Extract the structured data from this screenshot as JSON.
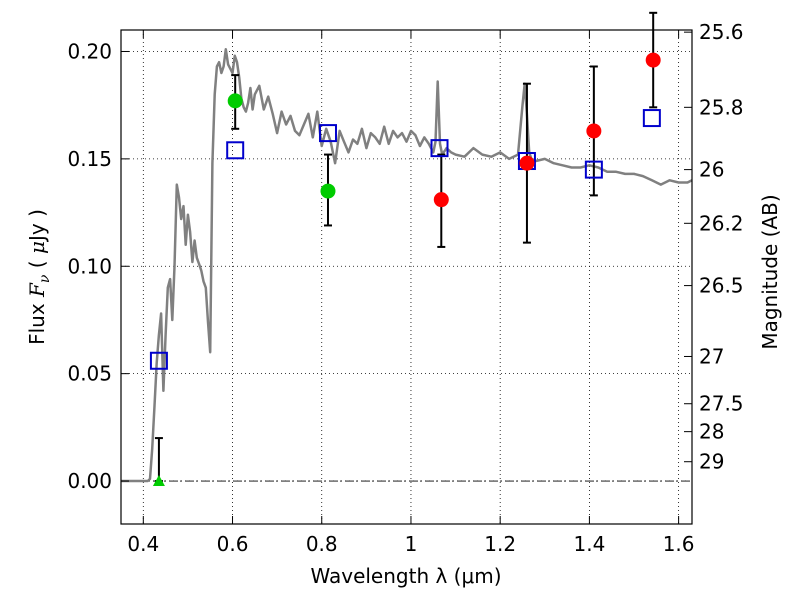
{
  "chart_data": {
    "type": "scatter",
    "xlabel": "Wavelength  λ (μm)",
    "ylabel_parts": [
      "Flux  ",
      "F",
      "ν",
      "  ( ",
      "μ",
      "Jy )"
    ],
    "ylabel": "Flux  Fν  ( μJy )",
    "y2label": "Magnitude (AB)",
    "xlim": [
      0.35,
      1.63
    ],
    "ylim": [
      -0.02,
      0.21
    ],
    "xticks": [
      0.4,
      0.6,
      0.8,
      1.0,
      1.2,
      1.4,
      1.6
    ],
    "xtick_labels": [
      "0.4",
      "0.6",
      "0.8",
      "1",
      "1.2",
      "1.4",
      "1.6"
    ],
    "yticks": [
      0.0,
      0.05,
      0.1,
      0.15,
      0.2
    ],
    "ytick_labels": [
      "0.00",
      "0.05",
      "0.10",
      "0.15",
      "0.20"
    ],
    "y2ticks": [
      {
        "flux": 0.209,
        "label": "25.6"
      },
      {
        "flux": 0.174,
        "label": "25.8"
      },
      {
        "flux": 0.145,
        "label": "26"
      },
      {
        "flux": 0.12,
        "label": "26.2"
      },
      {
        "flux": 0.091,
        "label": "26.5"
      },
      {
        "flux": 0.058,
        "label": "27"
      },
      {
        "flux": 0.036,
        "label": "27.5"
      },
      {
        "flux": 0.023,
        "label": "28"
      },
      {
        "flux": 0.009,
        "label": "29"
      }
    ],
    "grid": true,
    "model_sed": {
      "name": "model spectrum",
      "color": "#808080",
      "x": [
        0.35,
        0.4,
        0.41,
        0.415,
        0.42,
        0.425,
        0.43,
        0.435,
        0.44,
        0.445,
        0.45,
        0.455,
        0.46,
        0.465,
        0.47,
        0.475,
        0.48,
        0.485,
        0.49,
        0.495,
        0.5,
        0.505,
        0.51,
        0.515,
        0.52,
        0.525,
        0.53,
        0.535,
        0.54,
        0.545,
        0.55,
        0.555,
        0.56,
        0.565,
        0.57,
        0.575,
        0.58,
        0.585,
        0.59,
        0.595,
        0.6,
        0.605,
        0.61,
        0.615,
        0.62,
        0.625,
        0.63,
        0.635,
        0.64,
        0.645,
        0.65,
        0.66,
        0.67,
        0.68,
        0.69,
        0.7,
        0.71,
        0.72,
        0.73,
        0.74,
        0.75,
        0.76,
        0.77,
        0.78,
        0.79,
        0.8,
        0.81,
        0.82,
        0.83,
        0.84,
        0.85,
        0.86,
        0.87,
        0.88,
        0.89,
        0.9,
        0.91,
        0.92,
        0.93,
        0.94,
        0.95,
        0.96,
        0.97,
        0.98,
        0.99,
        1.0,
        1.01,
        1.02,
        1.03,
        1.04,
        1.05,
        1.055,
        1.06,
        1.065,
        1.07,
        1.08,
        1.09,
        1.1,
        1.12,
        1.14,
        1.16,
        1.18,
        1.2,
        1.22,
        1.24,
        1.25,
        1.255,
        1.26,
        1.265,
        1.27,
        1.28,
        1.3,
        1.32,
        1.34,
        1.36,
        1.38,
        1.4,
        1.42,
        1.44,
        1.46,
        1.48,
        1.5,
        1.52,
        1.54,
        1.56,
        1.58,
        1.6,
        1.62,
        1.63
      ],
      "y": [
        0.0,
        0.0,
        0.0,
        0.001,
        0.015,
        0.035,
        0.055,
        0.068,
        0.078,
        0.042,
        0.068,
        0.09,
        0.094,
        0.075,
        0.1,
        0.138,
        0.132,
        0.122,
        0.128,
        0.11,
        0.124,
        0.116,
        0.102,
        0.112,
        0.104,
        0.101,
        0.098,
        0.093,
        0.09,
        0.074,
        0.06,
        0.148,
        0.18,
        0.193,
        0.195,
        0.19,
        0.193,
        0.201,
        0.194,
        0.192,
        0.19,
        0.198,
        0.195,
        0.188,
        0.178,
        0.174,
        0.172,
        0.176,
        0.183,
        0.173,
        0.18,
        0.184,
        0.173,
        0.179,
        0.171,
        0.162,
        0.172,
        0.166,
        0.17,
        0.163,
        0.161,
        0.166,
        0.171,
        0.16,
        0.172,
        0.156,
        0.164,
        0.158,
        0.148,
        0.163,
        0.158,
        0.153,
        0.159,
        0.157,
        0.164,
        0.155,
        0.162,
        0.16,
        0.157,
        0.165,
        0.157,
        0.163,
        0.16,
        0.162,
        0.158,
        0.163,
        0.161,
        0.156,
        0.16,
        0.157,
        0.153,
        0.158,
        0.186,
        0.157,
        0.152,
        0.155,
        0.153,
        0.152,
        0.151,
        0.155,
        0.152,
        0.151,
        0.153,
        0.15,
        0.152,
        0.175,
        0.185,
        0.171,
        0.153,
        0.15,
        0.149,
        0.15,
        0.148,
        0.147,
        0.146,
        0.146,
        0.147,
        0.146,
        0.144,
        0.144,
        0.143,
        0.143,
        0.142,
        0.14,
        0.138,
        0.14,
        0.139,
        0.139,
        0.14
      ]
    },
    "model_points": {
      "name": "model photometry",
      "color": "#0000cc",
      "points": [
        {
          "x": 0.435,
          "y": 0.056
        },
        {
          "x": 0.606,
          "y": 0.154
        },
        {
          "x": 0.814,
          "y": 0.162
        },
        {
          "x": 1.064,
          "y": 0.155
        },
        {
          "x": 1.26,
          "y": 0.149
        },
        {
          "x": 1.41,
          "y": 0.145
        },
        {
          "x": 1.54,
          "y": 0.169
        }
      ]
    },
    "observed_green": {
      "name": "observed (green)",
      "color": "#00cc00",
      "points": [
        {
          "x": 0.606,
          "y": 0.177,
          "err_lo": 0.013,
          "err_hi": 0.012
        },
        {
          "x": 0.814,
          "y": 0.135,
          "err_lo": 0.016,
          "err_hi": 0.017
        }
      ]
    },
    "upper_limit": {
      "name": "non-detection",
      "color": "#00cc00",
      "x": 0.435,
      "y": 0.0,
      "err_hi": 0.02
    },
    "observed_red": {
      "name": "observed (red)",
      "color": "#ff0000",
      "points": [
        {
          "x": 1.068,
          "y": 0.131,
          "err_lo": 0.022,
          "err_hi": 0.021
        },
        {
          "x": 1.26,
          "y": 0.148,
          "err_lo": 0.037,
          "err_hi": 0.037
        },
        {
          "x": 1.41,
          "y": 0.163,
          "err_lo": 0.03,
          "err_hi": 0.03
        },
        {
          "x": 1.543,
          "y": 0.196,
          "err_lo": 0.022,
          "err_hi": 0.022
        }
      ]
    }
  }
}
